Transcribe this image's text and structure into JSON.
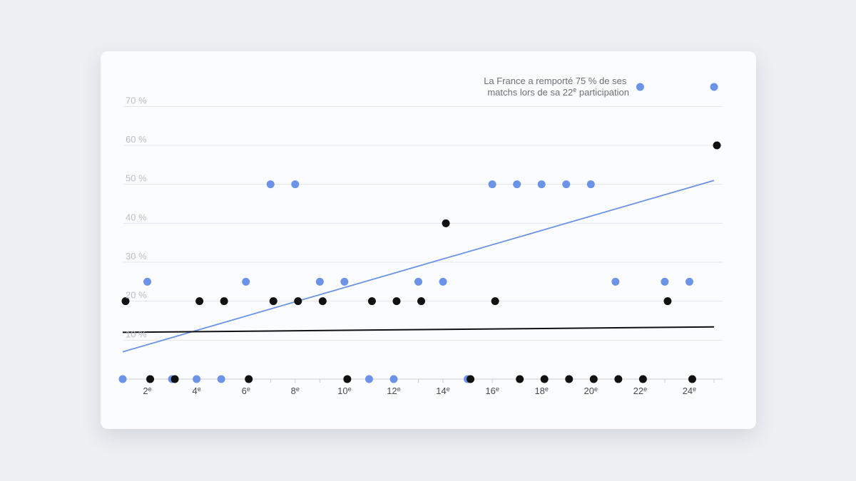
{
  "chart_data": {
    "type": "scatter",
    "title": "",
    "xlabel": "",
    "ylabel": "",
    "xlim": [
      1,
      25
    ],
    "ylim": [
      0,
      75
    ],
    "grid": true,
    "y_ticks": [
      {
        "value": 10,
        "label": "10 %"
      },
      {
        "value": 20,
        "label": "20 %"
      },
      {
        "value": 30,
        "label": "30 %"
      },
      {
        "value": 40,
        "label": "40 %"
      },
      {
        "value": 50,
        "label": "50 %"
      },
      {
        "value": 60,
        "label": "60 %"
      },
      {
        "value": 70,
        "label": "70 %"
      }
    ],
    "x_ticks": [
      {
        "value": 2,
        "label": "2e"
      },
      {
        "value": 4,
        "label": "4e"
      },
      {
        "value": 6,
        "label": "6e"
      },
      {
        "value": 8,
        "label": "8e"
      },
      {
        "value": 10,
        "label": "10e"
      },
      {
        "value": 12,
        "label": "12e"
      },
      {
        "value": 14,
        "label": "14e"
      },
      {
        "value": 16,
        "label": "16e"
      },
      {
        "value": 18,
        "label": "18e"
      },
      {
        "value": 20,
        "label": "20e"
      },
      {
        "value": 22,
        "label": "22e"
      },
      {
        "value": 24,
        "label": "24e"
      }
    ],
    "series": [
      {
        "color": "#6b93e8",
        "points": [
          [
            1,
            0
          ],
          [
            2,
            25
          ],
          [
            3,
            0
          ],
          [
            4,
            0
          ],
          [
            5,
            0
          ],
          [
            6,
            25
          ],
          [
            7,
            50
          ],
          [
            8,
            50
          ],
          [
            9,
            25
          ],
          [
            10,
            25
          ],
          [
            11,
            0
          ],
          [
            12,
            0
          ],
          [
            13,
            25
          ],
          [
            14,
            25
          ],
          [
            15,
            0
          ],
          [
            16,
            50
          ],
          [
            17,
            50
          ],
          [
            18,
            50
          ],
          [
            19,
            50
          ],
          [
            20,
            50
          ],
          [
            21,
            25
          ],
          [
            22,
            75
          ],
          [
            23,
            25
          ],
          [
            24,
            25
          ],
          [
            25,
            75
          ]
        ],
        "trend": [
          [
            1,
            7
          ],
          [
            25,
            51
          ]
        ]
      },
      {
        "color": "#111111",
        "points": [
          [
            1,
            20
          ],
          [
            2,
            0
          ],
          [
            3,
            0
          ],
          [
            4,
            20
          ],
          [
            5,
            20
          ],
          [
            6,
            0
          ],
          [
            7,
            20
          ],
          [
            8,
            20
          ],
          [
            9,
            20
          ],
          [
            10,
            0
          ],
          [
            11,
            20
          ],
          [
            12,
            20
          ],
          [
            13,
            20
          ],
          [
            14,
            40
          ],
          [
            15,
            0
          ],
          [
            16,
            20
          ],
          [
            17,
            0
          ],
          [
            18,
            0
          ],
          [
            19,
            0
          ],
          [
            20,
            0
          ],
          [
            21,
            0
          ],
          [
            22,
            0
          ],
          [
            23,
            20
          ],
          [
            24,
            0
          ],
          [
            25,
            60
          ]
        ],
        "trend": [
          [
            1,
            12
          ],
          [
            25,
            13.4
          ]
        ]
      }
    ],
    "annotation": {
      "lines": [
        "La France a remporté 75 % de ses",
        "matchs lors de sa 22",
        "e",
        " participation"
      ]
    }
  }
}
